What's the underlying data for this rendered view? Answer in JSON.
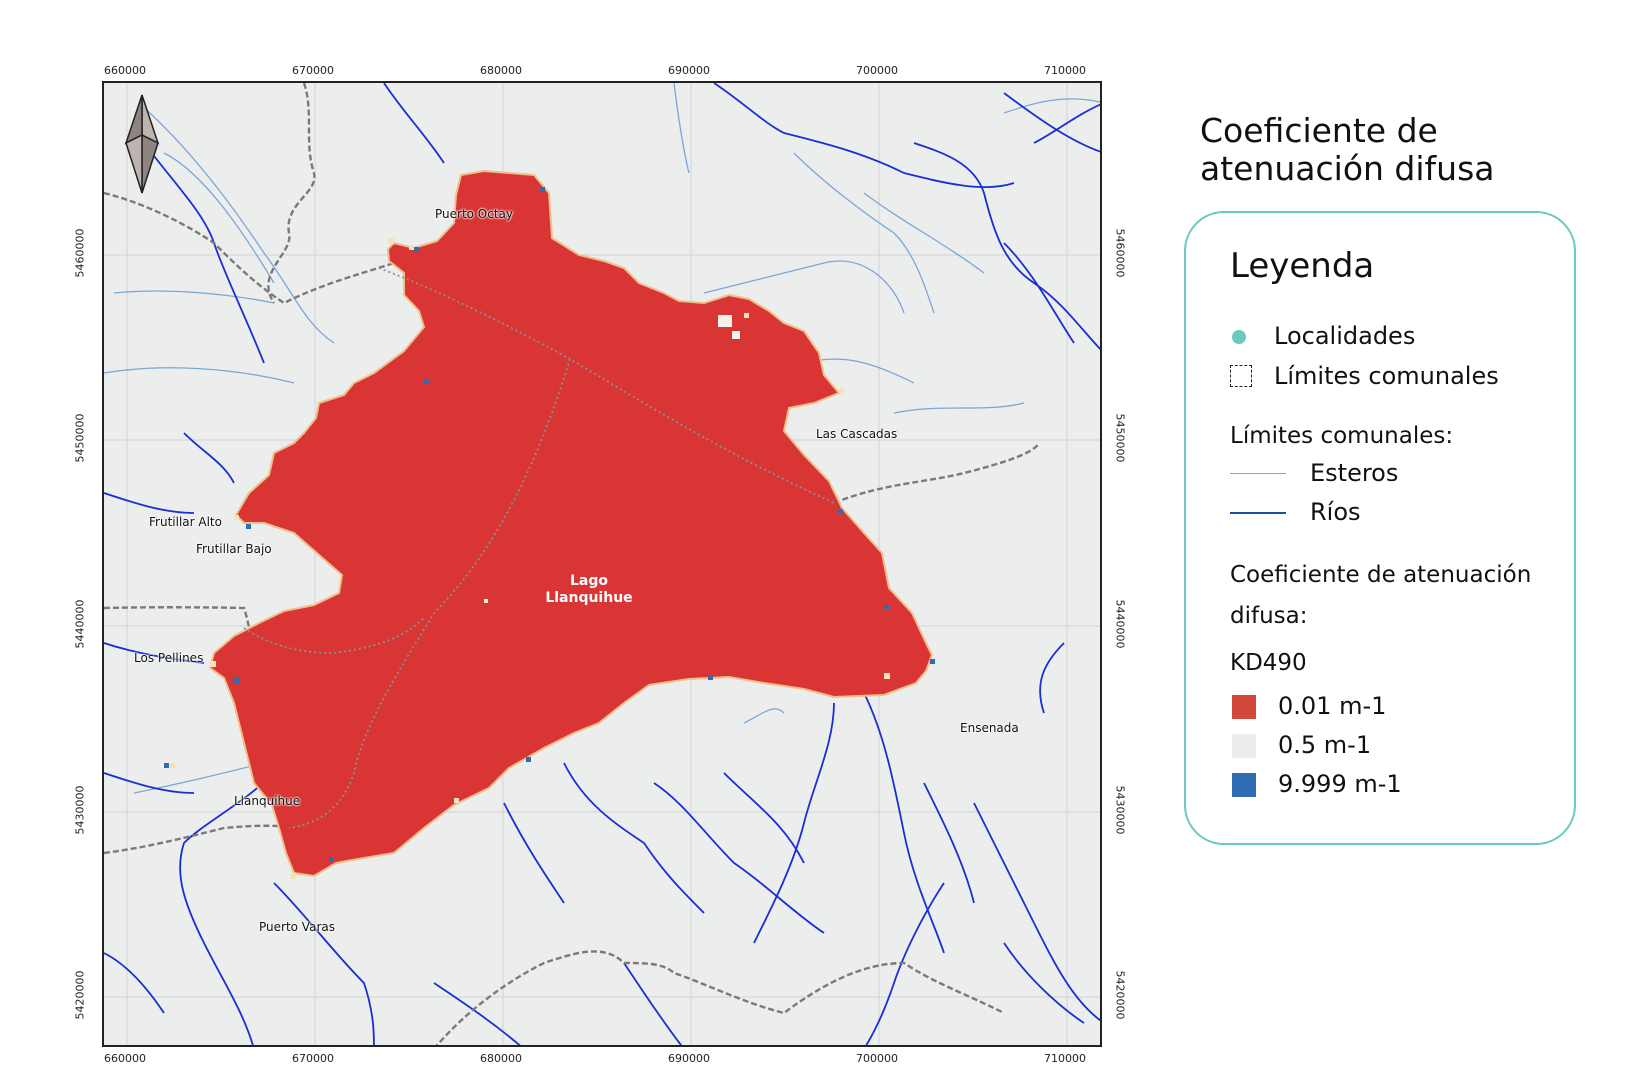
{
  "legend": {
    "title": "Coeficiente de atenuación difusa",
    "heading": "Leyenda",
    "localidades": "Localidades",
    "limites_comunales": "Límites comunales",
    "section_lines": "Límites comunales:",
    "esteros": "Esteros",
    "rios": "Ríos",
    "kd_title_1": "Coeficiente de atenuación",
    "kd_title_2": "difusa:",
    "kd_var": "KD490",
    "kd_low": "0.01 m-1",
    "kd_mid": "0.5 m-1",
    "kd_high": "9.999 m-1",
    "colors": {
      "localidades": "#6cc9bf",
      "kd_low": "#d2493c",
      "kd_mid": "#ececec",
      "kd_high": "#2f6db3",
      "esteros": "#7aa7d6",
      "rios": "#1a2fd1",
      "border": "#6cc9bf"
    }
  },
  "map": {
    "easting_ticks": [
      "660000",
      "670000",
      "680000",
      "690000",
      "700000",
      "710000"
    ],
    "northing_ticks": [
      "5460000",
      "5450000",
      "5440000",
      "5430000",
      "5420000"
    ],
    "lake_name": "Lago Llanquihue",
    "lake_name_line1": "Lago",
    "lake_name_line2": "Llanquihue",
    "places": {
      "puerto_octay": "Puerto Octay",
      "las_cascadas": "Las Cascadas",
      "frutillar_alto": "Frutillar Alto",
      "frutillar_bajo": "Frutillar Bajo",
      "los_pellines": "Los Pellines",
      "ensenada": "Ensenada",
      "llanquihue": "Llanquihue",
      "puerto_varas": "Puerto Varas"
    },
    "north_arrow": "north-arrow-icon",
    "colors": {
      "land": "#eceded",
      "lake": "#d93535",
      "river": "#1a2fd1",
      "stream": "#7aa7d6",
      "boundary": "#777777",
      "grid": "#cfd3d6"
    }
  }
}
